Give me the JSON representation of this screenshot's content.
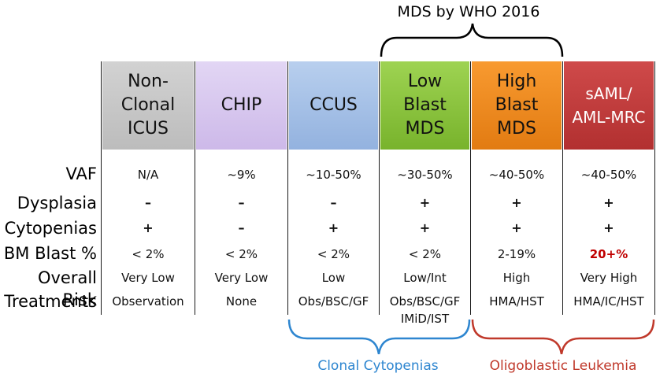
{
  "top_bracket_label": "MDS by WHO 2016",
  "columns": [
    {
      "lines": [
        "Non-",
        "Clonal",
        "ICUS"
      ],
      "color": "#c8c8c8"
    },
    {
      "lines": [
        "CHIP"
      ],
      "color": "#d8c8ee"
    },
    {
      "lines": [
        "CCUS"
      ],
      "color": "#a9c2e6"
    },
    {
      "lines": [
        "Low",
        "Blast",
        "MDS"
      ],
      "color": "#8cc63f"
    },
    {
      "lines": [
        "High",
        "Blast",
        "MDS"
      ],
      "color": "#f28a1f"
    },
    {
      "lines": [
        "sAML/",
        "AML-MRC"
      ],
      "color": "#c0393b"
    }
  ],
  "rows": [
    {
      "label": "VAF",
      "values": [
        "N/A",
        "~9%",
        "~10-50%",
        "~30-50%",
        "~40-50%",
        "~40-50%"
      ]
    },
    {
      "label": "Dysplasia",
      "values": [
        "–",
        "–",
        "–",
        "+",
        "+",
        "+"
      ]
    },
    {
      "label": "Cytopenias",
      "values": [
        "+",
        "–",
        "+",
        "+",
        "+",
        "+"
      ]
    },
    {
      "label": "BM Blast %",
      "values": [
        "< 2%",
        "< 2%",
        "< 2%",
        "< 2%",
        "2-19%",
        "20+%"
      ]
    },
    {
      "label": "Overall Risk",
      "values": [
        "Very Low",
        "Very Low",
        "Low",
        "Low/Int",
        "High",
        "Very High"
      ]
    },
    {
      "label": "Treatments",
      "values": [
        "Observation",
        "None",
        "Obs/BSC/GF",
        "Obs/BSC/GF",
        "HMA/HST",
        "HMA/IC/HST"
      ]
    }
  ],
  "treatment_extra": "IMiD/IST",
  "bottom_labels": {
    "clonal": "Clonal Cytopenias",
    "oligo": "Oligoblastic Leukemia"
  },
  "colors": {
    "clonal_bracket": "#2e86d0",
    "oligo_bracket": "#c0392b",
    "highlight_value": "#c00000"
  }
}
